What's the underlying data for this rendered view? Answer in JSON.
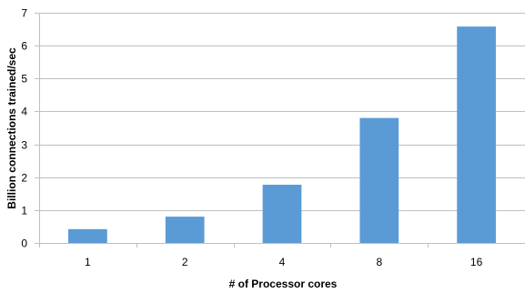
{
  "chart_data": {
    "type": "bar",
    "title": "",
    "xlabel": "# of Processor cores",
    "ylabel": "Billion connections trained/sec",
    "categories": [
      "1",
      "2",
      "4",
      "8",
      "16"
    ],
    "values": [
      0.42,
      0.8,
      1.77,
      3.8,
      6.58
    ],
    "ylim": [
      0,
      7
    ],
    "yticks": [
      0,
      1,
      2,
      3,
      4,
      5,
      6,
      7
    ],
    "grid": true,
    "legend": "none",
    "colors": {
      "bar": "#5B9BD5",
      "grid": "#BFBFBF",
      "axis": "#BFBFBF"
    }
  }
}
